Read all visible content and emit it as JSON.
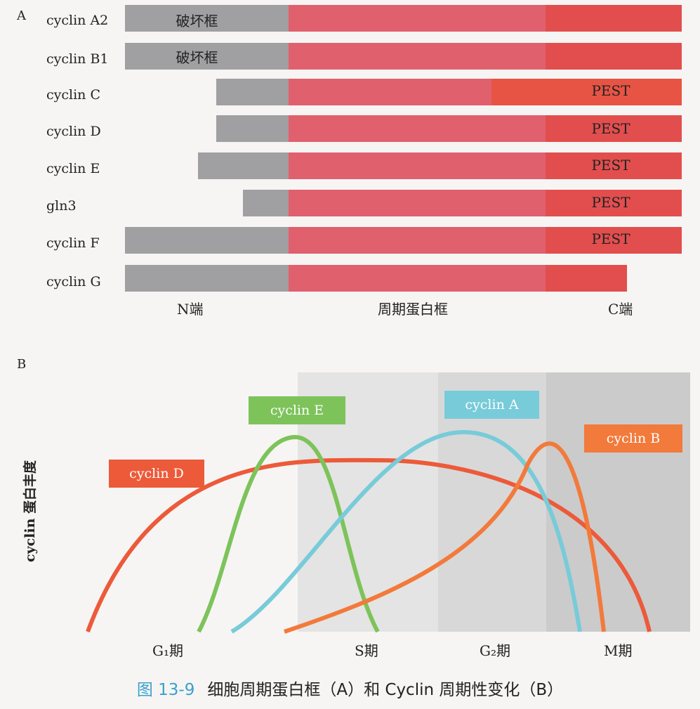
{
  "panel_a": {
    "letter": "A",
    "rows": [
      {
        "label": "cyclin A2",
        "destruction_box": "破坏框",
        "pest": ""
      },
      {
        "label": "cyclin B1",
        "destruction_box": "破坏框",
        "pest": ""
      },
      {
        "label": "cyclin C",
        "destruction_box": "",
        "pest": "PEST"
      },
      {
        "label": "cyclin D",
        "destruction_box": "",
        "pest": "PEST"
      },
      {
        "label": "cyclin E",
        "destruction_box": "",
        "pest": "PEST"
      },
      {
        "label": "gln3",
        "destruction_box": "",
        "pest": "PEST"
      },
      {
        "label": "cyclin F",
        "destruction_box": "",
        "pest": "PEST"
      },
      {
        "label": "cyclin G",
        "destruction_box": "",
        "pest": ""
      }
    ],
    "axis": {
      "n_term": "N端",
      "cyclin_box": "周期蛋白框",
      "c_term": "C端"
    },
    "colors": {
      "n_region": "#a0a0a2",
      "cyclin_box": "#e0606e",
      "c_region": "#e24e4e",
      "c_region_c": "#e85444"
    }
  },
  "panel_b": {
    "letter": "B",
    "ylabel": "cyclin 蛋白丰度",
    "phases": [
      "G₁期",
      "S期",
      "G₂期",
      "M期"
    ],
    "curves": [
      {
        "name": "cyclin D",
        "color": "#ec5a3a"
      },
      {
        "name": "cyclin E",
        "color": "#7dc35a"
      },
      {
        "name": "cyclin A",
        "color": "#78cbd9"
      },
      {
        "name": "cyclin B",
        "color": "#f27a3b"
      }
    ]
  },
  "caption": {
    "figure_no": "图 13-9",
    "text": "细胞周期蛋白框（A）和 Cyclin 周期性变化（B）"
  }
}
